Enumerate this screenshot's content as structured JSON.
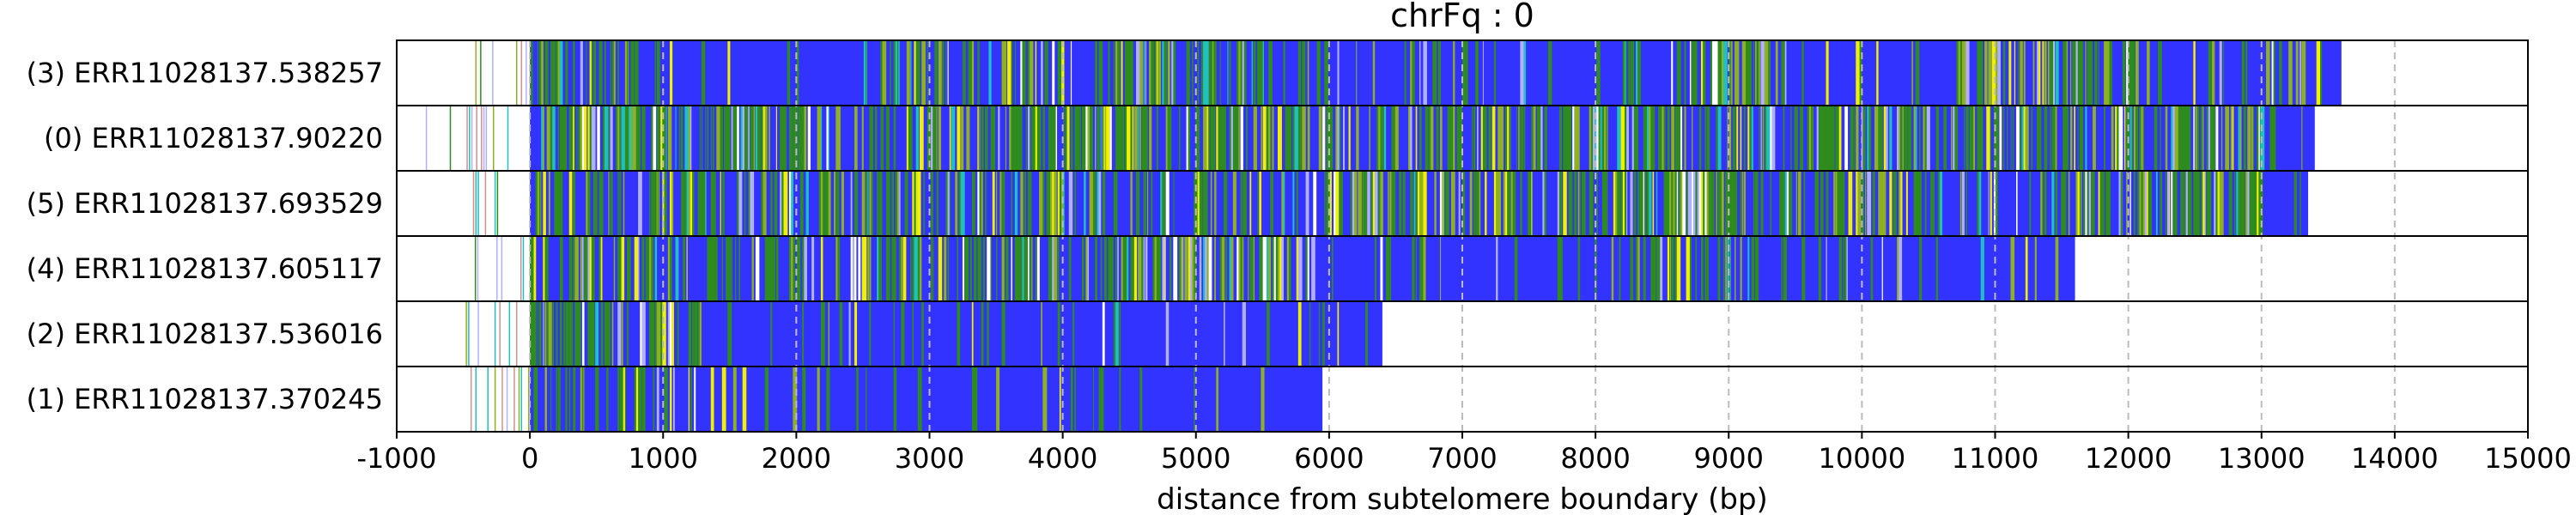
{
  "chart_data": {
    "type": "heatmap",
    "title": "chrFq : 0",
    "xlabel": "distance from subtelomere boundary (bp)",
    "ylabel": "",
    "xlim": [
      -1000,
      15000
    ],
    "xticks": [
      "-1000",
      "0",
      "1000",
      "2000",
      "3000",
      "4000",
      "5000",
      "6000",
      "7000",
      "8000",
      "9000",
      "10000",
      "11000",
      "12000",
      "13000",
      "14000",
      "15000"
    ],
    "grid": "vertical dashed lines every 1000 bp",
    "colors": {
      "base": "#3333ff",
      "green": "#2e8b1e",
      "olive": "#8fb020",
      "yellow": "#f0f000",
      "cyan": "#20c0c0",
      "lavender": "#b0b0ff",
      "white": "#ffffff",
      "frame": "#000000",
      "grid": "#bbbbbb"
    },
    "rows": [
      {
        "label": "(3) ERR11028137.538257",
        "start": -500,
        "end": 13600
      },
      {
        "label": "(0) ERR11028137.90220",
        "start": -800,
        "end": 13400
      },
      {
        "label": "(5) ERR11028137.693529",
        "start": -500,
        "end": 13350
      },
      {
        "label": "(4) ERR11028137.605117",
        "start": -450,
        "end": 11600
      },
      {
        "label": "(2) ERR11028137.536016",
        "start": -500,
        "end": 6400
      },
      {
        "label": "(1) ERR11028137.370245",
        "start": -500,
        "end": 5950
      }
    ]
  }
}
